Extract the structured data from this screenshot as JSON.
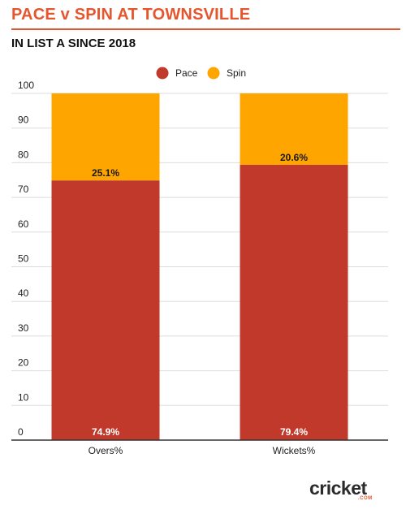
{
  "header": {
    "title": "PACE v SPIN AT TOWNSVILLE",
    "subtitle": "IN LIST A SINCE 2018"
  },
  "colors": {
    "accent": "#e4572e",
    "pace": "#c0392b",
    "spin": "#ffa500",
    "text": "#222222",
    "grid": "#dddddd"
  },
  "logo": {
    "word": "cricket",
    "sub": ".COM"
  },
  "chart_data": {
    "type": "bar",
    "stacked": true,
    "categories": [
      "Overs%",
      "Wickets%"
    ],
    "series": [
      {
        "name": "Pace",
        "values": [
          74.9,
          79.4
        ],
        "labels": [
          "74.9%",
          "79.4%"
        ]
      },
      {
        "name": "Spin",
        "values": [
          25.1,
          20.6
        ],
        "labels": [
          "25.1%",
          "20.6%"
        ]
      }
    ],
    "ylim": [
      0,
      100
    ],
    "yticks": [
      0,
      10,
      20,
      30,
      40,
      50,
      60,
      70,
      80,
      90,
      100
    ],
    "grid": true,
    "legend": "top"
  }
}
